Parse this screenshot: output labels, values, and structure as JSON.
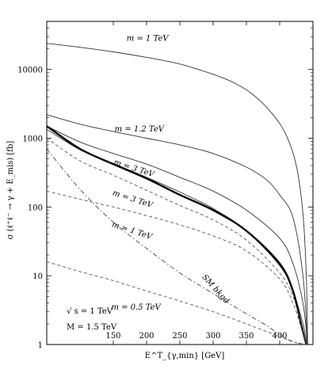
{
  "chart_data": {
    "type": "line",
    "title": "",
    "xlabel": "E^T_{γ,min} [GeV]",
    "ylabel": "σ (ℓ⁺ℓ⁻ → γ + E_mis) [fb]",
    "xlim": [
      50,
      450
    ],
    "ylim": [
      1,
      50000
    ],
    "y_scale": "log",
    "x_ticks": [
      "150",
      "200",
      "250",
      "300",
      "350",
      "400"
    ],
    "y_ticks": [
      "1",
      "10",
      "100",
      "1000",
      "10000"
    ],
    "grid": false,
    "legend": "none",
    "series": [
      {
        "name": "m = 1 TeV",
        "style": "thin-solid",
        "x": [
          50,
          100,
          150,
          200,
          250,
          300,
          330,
          360,
          390,
          410,
          425,
          435,
          440,
          442
        ],
        "y": [
          24000,
          21000,
          18000,
          15000,
          12000,
          8500,
          6500,
          4300,
          2200,
          1100,
          400,
          80,
          10,
          1
        ]
      },
      {
        "name": "m = 1.2 TeV",
        "style": "thin-solid",
        "x": [
          50,
          100,
          150,
          200,
          250,
          300,
          350,
          380,
          400,
          420,
          435,
          442
        ],
        "y": [
          2200,
          1600,
          1250,
          1000,
          800,
          600,
          380,
          250,
          150,
          70,
          10,
          1
        ]
      },
      {
        "name": "m = 3 TeV",
        "style": "thin-solid",
        "x": [
          50,
          100,
          150,
          200,
          250,
          300,
          350,
          400,
          420,
          435,
          442
        ],
        "y": [
          1500,
          880,
          600,
          420,
          270,
          170,
          90,
          35,
          15,
          4,
          1
        ]
      },
      {
        "name": "m = 3 TeV",
        "style": "thin-solid",
        "x": [
          50,
          100,
          150,
          200,
          250,
          300,
          350,
          400,
          420,
          435,
          442
        ],
        "y": [
          1350,
          680,
          430,
          270,
          165,
          95,
          45,
          14,
          6,
          2,
          1
        ]
      },
      {
        "name": "",
        "style": "thick-solid",
        "x": [
          50,
          100,
          150,
          200,
          250,
          300,
          350,
          400,
          420,
          432,
          440
        ],
        "y": [
          1500,
          700,
          420,
          260,
          150,
          90,
          45,
          15,
          6,
          2,
          1
        ]
      },
      {
        "name": "m = 1 TeV",
        "style": "dashed",
        "x": [
          50,
          100,
          150,
          200,
          250,
          300,
          350,
          400,
          420,
          432,
          440
        ],
        "y": [
          170,
          130,
          100,
          75,
          55,
          38,
          23,
          9,
          4,
          1.8,
          1
        ]
      },
      {
        "name": "m = 0.5 TeV",
        "style": "dashed",
        "x": [
          50,
          100,
          150,
          200,
          250,
          300,
          350,
          400,
          420,
          435
        ],
        "y": [
          16,
          11.5,
          8.5,
          6,
          4.3,
          3,
          2,
          1.3,
          1.1,
          1
        ]
      },
      {
        "name": "",
        "style": "dashed",
        "x": [
          50,
          100,
          150,
          200,
          250,
          300,
          350,
          400,
          420,
          432,
          440
        ],
        "y": [
          1000,
          470,
          290,
          175,
          105,
          65,
          33,
          11,
          5,
          2,
          1
        ]
      },
      {
        "name": "SM bkgd",
        "style": "dash-dot",
        "x": [
          50,
          100,
          150,
          200,
          250,
          300,
          350,
          380,
          400,
          420,
          440
        ],
        "y": [
          700,
          180,
          60,
          25,
          11,
          5.5,
          2.8,
          1.9,
          1.4,
          1.1,
          1
        ]
      }
    ],
    "annotations": [
      {
        "text": "m = 1 TeV",
        "x": 170,
        "y": 26000
      },
      {
        "text": "m = 1.2 TeV",
        "x": 152,
        "y": 1250
      },
      {
        "text": "m = 3 TeV",
        "x": 150,
        "y": 420
      },
      {
        "text": "m = 3 TeV",
        "x": 148,
        "y": 150
      },
      {
        "text": "m = 1 TeV",
        "x": 147,
        "y": 52
      },
      {
        "text": "SM bkgd",
        "x": 283,
        "y": 9.5
      },
      {
        "text": "m = 0.5 TeV",
        "x": 147,
        "y": 3.2
      }
    ],
    "notes": [
      "√ s  = 1 TeV",
      "M = 1.5 TeV"
    ]
  }
}
